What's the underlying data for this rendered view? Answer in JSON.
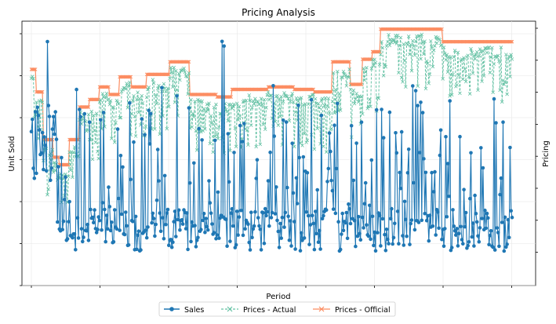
{
  "chart_data": {
    "type": "line",
    "title": "Pricing Analysis",
    "xlabel": "Period",
    "ylabel": "Unit Sold",
    "ylabel_right": "Pricing",
    "grid": true,
    "legend_position": "bottom-center",
    "n_periods": 480,
    "series": [
      {
        "name": "Sales",
        "axis": "left",
        "color": "#1f77b4",
        "style": "solid",
        "marker": "circle"
      },
      {
        "name": "Prices - Actual",
        "axis": "right",
        "color": "#66c2a5",
        "style": "dashed",
        "marker": "x"
      },
      {
        "name": "Prices - Official",
        "axis": "right",
        "color": "#fc8d62",
        "style": "solid",
        "marker": "x"
      }
    ],
    "official_price_steps": [
      {
        "from": 0,
        "to": 5,
        "level": 0.83
      },
      {
        "from": 5,
        "to": 12,
        "level": 0.74
      },
      {
        "from": 12,
        "to": 22,
        "level": 0.55
      },
      {
        "from": 22,
        "to": 28,
        "level": 0.48
      },
      {
        "from": 28,
        "to": 38,
        "level": 0.45
      },
      {
        "from": 38,
        "to": 48,
        "level": 0.55
      },
      {
        "from": 48,
        "to": 58,
        "level": 0.68
      },
      {
        "from": 58,
        "to": 68,
        "level": 0.71
      },
      {
        "from": 68,
        "to": 78,
        "level": 0.76
      },
      {
        "from": 78,
        "to": 88,
        "level": 0.73
      },
      {
        "from": 88,
        "to": 100,
        "level": 0.8
      },
      {
        "from": 100,
        "to": 115,
        "level": 0.76
      },
      {
        "from": 115,
        "to": 138,
        "level": 0.81
      },
      {
        "from": 138,
        "to": 158,
        "level": 0.86
      },
      {
        "from": 158,
        "to": 185,
        "level": 0.73
      },
      {
        "from": 185,
        "to": 200,
        "level": 0.72
      },
      {
        "from": 200,
        "to": 218,
        "level": 0.75
      },
      {
        "from": 218,
        "to": 236,
        "level": 0.75
      },
      {
        "from": 236,
        "to": 262,
        "level": 0.76
      },
      {
        "from": 262,
        "to": 282,
        "level": 0.75
      },
      {
        "from": 282,
        "to": 300,
        "level": 0.74
      },
      {
        "from": 300,
        "to": 318,
        "level": 0.86
      },
      {
        "from": 318,
        "to": 330,
        "level": 0.77
      },
      {
        "from": 330,
        "to": 340,
        "level": 0.87
      },
      {
        "from": 340,
        "to": 348,
        "level": 0.9
      },
      {
        "from": 348,
        "to": 410,
        "level": 0.99
      },
      {
        "from": 410,
        "to": 480,
        "level": 0.94
      }
    ]
  }
}
